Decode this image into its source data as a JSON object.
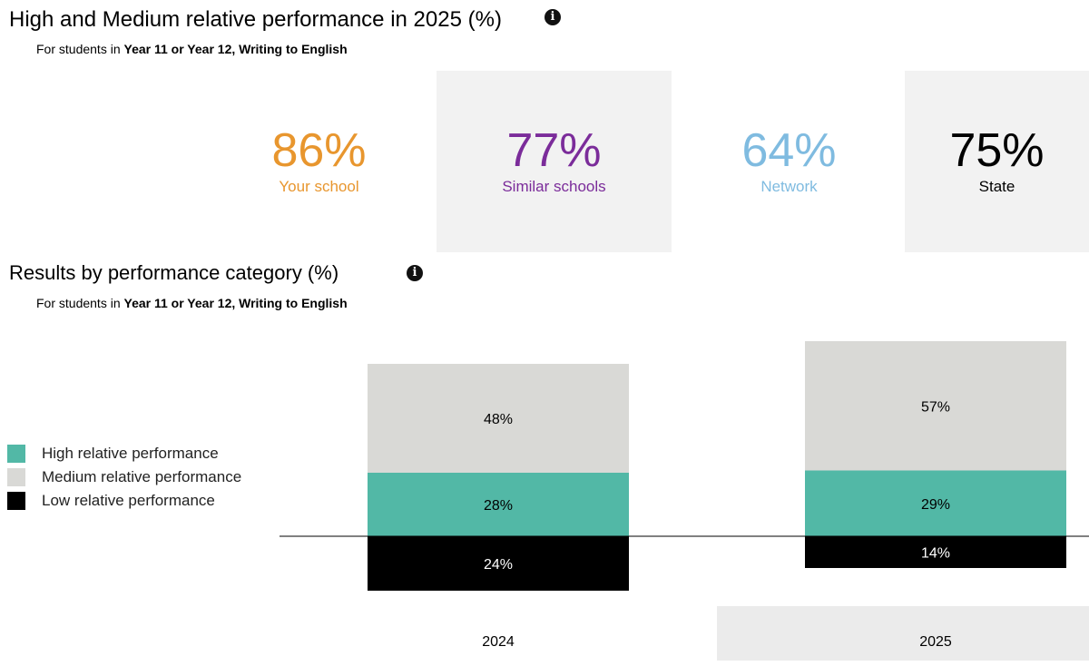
{
  "kpi_section": {
    "title": "High and Medium relative performance in 2025 (%)",
    "subtitle_prefix": "For students in ",
    "subtitle_bold": "Year 11 or Year 12, Writing to English",
    "info_glyph": "i",
    "cards": [
      {
        "value": "86%",
        "label": "Your school",
        "color": "#e8962e"
      },
      {
        "value": "77%",
        "label": "Similar schools",
        "color": "#7b2c9a"
      },
      {
        "value": "64%",
        "label": "Network",
        "color": "#7fbbe0"
      },
      {
        "value": "75%",
        "label": "State",
        "color": "#000000"
      }
    ]
  },
  "results_section": {
    "title": "Results by performance category (%)",
    "subtitle_prefix": "For students in ",
    "subtitle_bold": "Year 11 or Year 12, Writing to English",
    "info_glyph": "i"
  },
  "legend": [
    {
      "label": "High relative performance",
      "color": "#52b8a6"
    },
    {
      "label": "Medium relative performance",
      "color": "#d9d9d6"
    },
    {
      "label": "Low relative performance",
      "color": "#000000"
    }
  ],
  "chart_data": {
    "type": "bar",
    "stacked": "diverging",
    "categories": [
      "2024",
      "2025"
    ],
    "highlighted_category": "2025",
    "series": [
      {
        "name": "High relative performance",
        "values": [
          28,
          29
        ],
        "labels": [
          "28%",
          "29%"
        ],
        "color": "#52b8a6",
        "direction": "up"
      },
      {
        "name": "Medium relative performance",
        "values": [
          48,
          57
        ],
        "labels": [
          "48%",
          "57%"
        ],
        "color": "#d9d9d6",
        "direction": "up"
      },
      {
        "name": "Low relative performance",
        "values": [
          24,
          14
        ],
        "labels": [
          "24%",
          "14%"
        ],
        "color": "#000000",
        "direction": "down"
      }
    ],
    "baseline": 0,
    "grid": false,
    "legend_position": "left"
  }
}
